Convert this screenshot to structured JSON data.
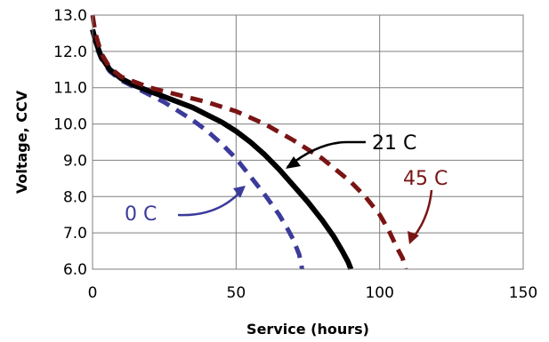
{
  "chart_data": {
    "type": "line",
    "title": "",
    "xlabel": "Service (hours)",
    "ylabel": "Voltage, CCV",
    "xlim": [
      0,
      150
    ],
    "ylim": [
      6.0,
      13.0
    ],
    "x_ticks": [
      0,
      50,
      100,
      150
    ],
    "x_tick_labels": [
      "0",
      "50",
      "100",
      "150"
    ],
    "y_ticks": [
      6.0,
      7.0,
      8.0,
      9.0,
      10.0,
      11.0,
      12.0,
      13.0
    ],
    "y_tick_labels": [
      "6.0",
      "7.0",
      "8.0",
      "9.0",
      "10.0",
      "11.0",
      "12.0",
      "13.0"
    ],
    "grid": true,
    "legend": "none",
    "series": [
      {
        "name": "0 C",
        "color": "#3b3b9b",
        "style": "dashed",
        "points": [
          [
            0,
            12.6
          ],
          [
            1,
            12.2
          ],
          [
            3,
            11.8
          ],
          [
            6,
            11.45
          ],
          [
            10,
            11.2
          ],
          [
            15,
            11.0
          ],
          [
            20,
            10.8
          ],
          [
            25,
            10.6
          ],
          [
            30,
            10.35
          ],
          [
            35,
            10.1
          ],
          [
            40,
            9.8
          ],
          [
            45,
            9.45
          ],
          [
            50,
            9.05
          ],
          [
            55,
            8.55
          ],
          [
            60,
            8.05
          ],
          [
            65,
            7.5
          ],
          [
            68,
            7.1
          ],
          [
            70,
            6.8
          ],
          [
            72,
            6.4
          ],
          [
            73,
            6.0
          ]
        ]
      },
      {
        "name": "21 C",
        "color": "#000000",
        "style": "solid",
        "points": [
          [
            0,
            12.6
          ],
          [
            1,
            12.3
          ],
          [
            3,
            11.85
          ],
          [
            6,
            11.5
          ],
          [
            10,
            11.25
          ],
          [
            15,
            11.05
          ],
          [
            20,
            10.9
          ],
          [
            25,
            10.75
          ],
          [
            30,
            10.6
          ],
          [
            35,
            10.45
          ],
          [
            40,
            10.25
          ],
          [
            45,
            10.05
          ],
          [
            50,
            9.8
          ],
          [
            55,
            9.5
          ],
          [
            60,
            9.15
          ],
          [
            65,
            8.75
          ],
          [
            70,
            8.3
          ],
          [
            75,
            7.85
          ],
          [
            80,
            7.35
          ],
          [
            84,
            6.9
          ],
          [
            87,
            6.5
          ],
          [
            89,
            6.2
          ],
          [
            90,
            6.0
          ]
        ]
      },
      {
        "name": "45 C",
        "color": "#7a1414",
        "style": "dashed",
        "points": [
          [
            0,
            13.0
          ],
          [
            1,
            12.5
          ],
          [
            3,
            11.95
          ],
          [
            6,
            11.55
          ],
          [
            10,
            11.3
          ],
          [
            15,
            11.15
          ],
          [
            20,
            11.0
          ],
          [
            30,
            10.8
          ],
          [
            40,
            10.6
          ],
          [
            50,
            10.35
          ],
          [
            60,
            10.0
          ],
          [
            70,
            9.55
          ],
          [
            80,
            9.05
          ],
          [
            90,
            8.4
          ],
          [
            95,
            8.0
          ],
          [
            100,
            7.5
          ],
          [
            103,
            7.1
          ],
          [
            106,
            6.6
          ],
          [
            108,
            6.3
          ],
          [
            109,
            6.0
          ]
        ]
      }
    ],
    "annotations": [
      {
        "text": "21 C",
        "color": "#000000",
        "series": "21 C"
      },
      {
        "text": "45 C",
        "color": "#7a1414",
        "series": "45 C"
      },
      {
        "text": "0 C",
        "color": "#3b3b9b",
        "series": "0 C"
      }
    ]
  }
}
